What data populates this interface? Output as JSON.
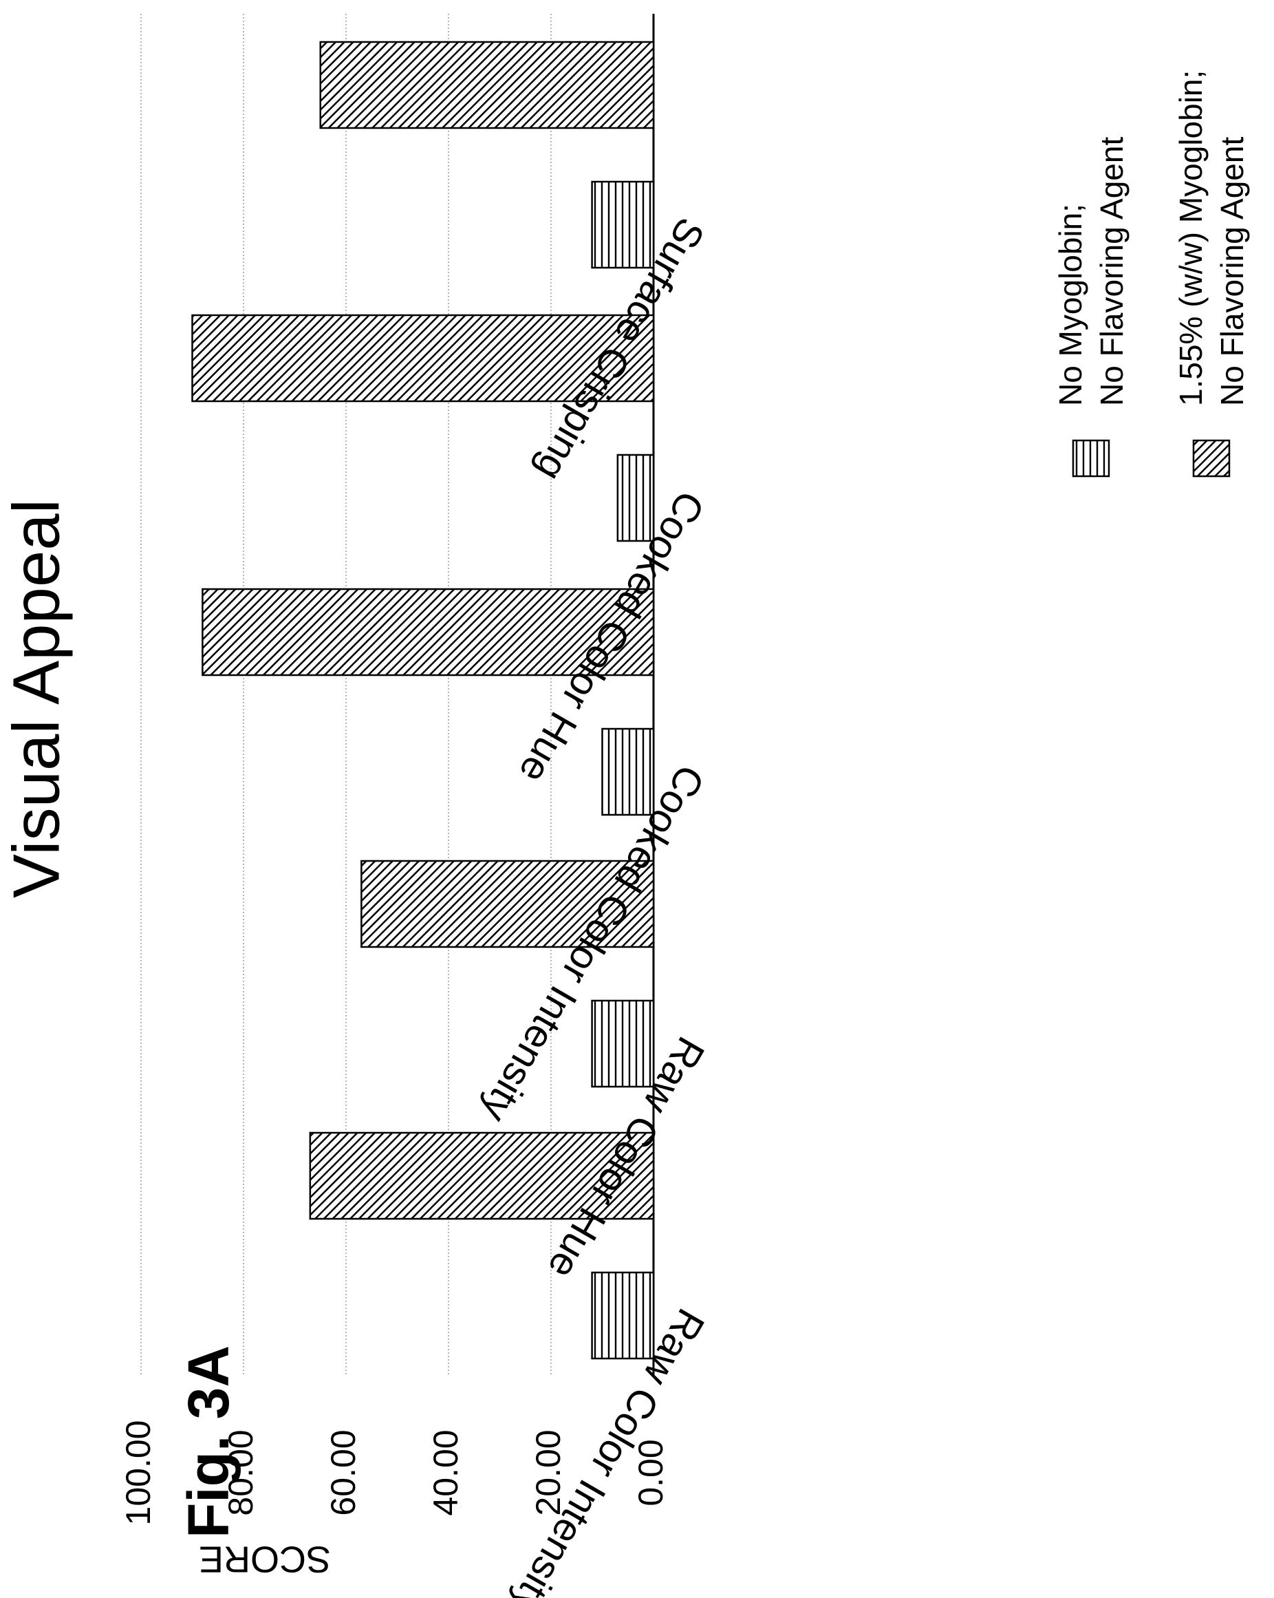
{
  "figure_label": "Fig. 3A",
  "chart_data": {
    "type": "bar",
    "orientation": "horizontal-rotated",
    "title": "Visual Appeal",
    "ylabel": "SCORE",
    "xlabel": "",
    "ylim": [
      0,
      100
    ],
    "yticks": [
      "0.00",
      "20.00",
      "40.00",
      "60.00",
      "80.00",
      "100.00"
    ],
    "grid": true,
    "legend_position": "bottom",
    "categories": [
      "Raw Color Intensity",
      "Raw Color Hue",
      "Cooked Color Intensity",
      "Cooked Color Hue",
      "Surface Crisping"
    ],
    "series": [
      {
        "name": "No Myoglobin; No Flavoring Agent",
        "name_lines": [
          "No Myoglobin;",
          "No Flavoring Agent"
        ],
        "pattern": "horizontal-lines",
        "values": [
          12,
          12,
          10,
          7,
          12
        ]
      },
      {
        "name": "1.55% (w/w) Myoglobin; No Flavoring Agent",
        "name_lines": [
          "1.55% (w/w) Myoglobin;",
          "No Flavoring Agent"
        ],
        "pattern": "diagonal-hatch",
        "values": [
          67,
          57,
          88,
          90,
          65
        ]
      }
    ]
  }
}
